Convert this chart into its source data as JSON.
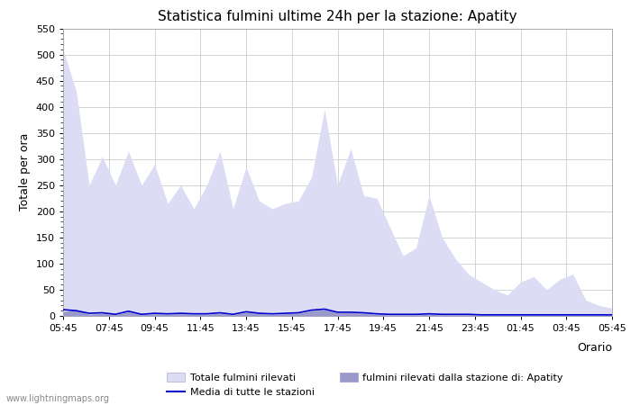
{
  "title": "Statistica fulmini ultime 24h per la stazione: Apatity",
  "xlabel": "Orario",
  "ylabel": "Totale per ora",
  "xlabels": [
    "05:45",
    "07:45",
    "09:45",
    "11:45",
    "13:45",
    "15:45",
    "17:45",
    "19:45",
    "21:45",
    "23:45",
    "01:45",
    "03:45",
    "05:45"
  ],
  "ylim": [
    0,
    550
  ],
  "yticks": [
    0,
    50,
    100,
    150,
    200,
    250,
    300,
    350,
    400,
    450,
    500,
    550
  ],
  "fill_color_light": "#dcdcf5",
  "fill_color_dark": "#9999cc",
  "line_color": "#0000cc",
  "bg_color": "#ffffff",
  "grid_color": "#cccccc",
  "watermark": "www.lightningmaps.org",
  "legend": {
    "label1": "Totale fulmini rilevati",
    "label2": "Media di tutte le stazioni",
    "label3": "fulmini rilevati dalla stazione di: Apatity"
  },
  "total_values": [
    510,
    430,
    250,
    305,
    250,
    315,
    250,
    290,
    215,
    250,
    205,
    250,
    315,
    205,
    285,
    220,
    205,
    215,
    220,
    265,
    395,
    250,
    320,
    230,
    225,
    170,
    115,
    130,
    230,
    150,
    110,
    80,
    65,
    50,
    40,
    65,
    75,
    50,
    70,
    80,
    30,
    20,
    15
  ],
  "station_values": [
    8,
    12,
    3,
    5,
    2,
    8,
    2,
    4,
    3,
    4,
    3,
    3,
    5,
    2,
    7,
    4,
    3,
    4,
    5,
    10,
    12,
    6,
    6,
    5,
    3,
    2,
    2,
    2,
    3,
    2,
    2,
    2,
    1,
    1,
    1,
    1,
    1,
    1,
    1,
    1,
    1,
    1,
    1
  ],
  "avg_values": [
    12,
    10,
    5,
    6,
    3,
    9,
    3,
    5,
    4,
    5,
    4,
    4,
    6,
    3,
    8,
    5,
    4,
    5,
    6,
    11,
    13,
    7,
    7,
    6,
    4,
    3,
    3,
    3,
    4,
    3,
    3,
    3,
    2,
    2,
    2,
    2,
    2,
    2,
    2,
    2,
    2,
    2,
    2
  ]
}
